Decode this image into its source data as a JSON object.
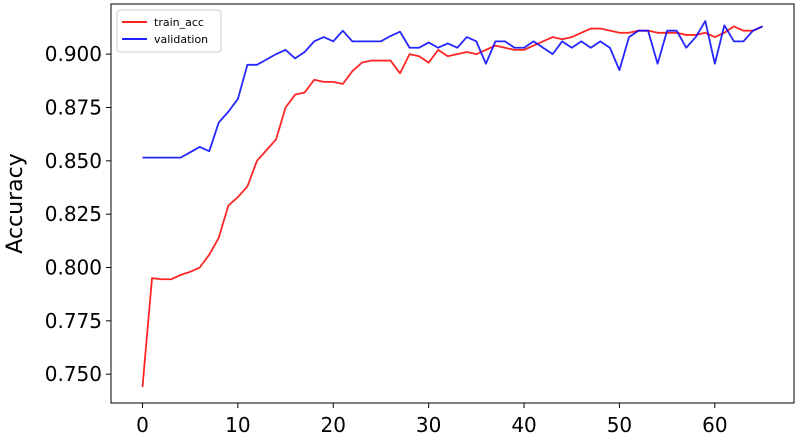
{
  "chart_data": {
    "type": "line",
    "title": "",
    "xlabel": "",
    "ylabel": "Accuracy",
    "xlim": [
      -3.3,
      68.3
    ],
    "ylim": [
      0.7365,
      0.9235
    ],
    "xticks": [
      0,
      10,
      20,
      30,
      40,
      50,
      60
    ],
    "yticks": [
      0.75,
      0.775,
      0.8,
      0.825,
      0.85,
      0.875,
      0.9
    ],
    "ytick_labels": [
      "0.750",
      "0.775",
      "0.800",
      "0.825",
      "0.850",
      "0.875",
      "0.900"
    ],
    "grid": false,
    "legend": "top-left",
    "series": [
      {
        "name": "train_acc",
        "color": "#ff0000",
        "values": [
          0.744,
          0.795,
          0.7945,
          0.7945,
          0.7965,
          0.798,
          0.8,
          0.806,
          0.814,
          0.829,
          0.833,
          0.838,
          0.85,
          0.855,
          0.86,
          0.875,
          0.881,
          0.882,
          0.888,
          0.887,
          0.887,
          0.886,
          0.892,
          0.896,
          0.897,
          0.897,
          0.897,
          0.891,
          0.9,
          0.899,
          0.896,
          0.902,
          0.899,
          0.9,
          0.901,
          0.9,
          0.902,
          0.904,
          0.903,
          0.902,
          0.902,
          0.904,
          0.906,
          0.908,
          0.907,
          0.908,
          0.91,
          0.912,
          0.912,
          0.911,
          0.91,
          0.91,
          0.911,
          0.911,
          0.91,
          0.91,
          0.91,
          0.909,
          0.909,
          0.91,
          0.908,
          0.91,
          0.913,
          0.911,
          0.911,
          0.913
        ]
      },
      {
        "name": "validation",
        "color": "#0000ff",
        "values": [
          0.8515,
          0.8515,
          0.8515,
          0.8515,
          0.8515,
          0.854,
          0.8565,
          0.8545,
          0.868,
          0.873,
          0.879,
          0.895,
          0.895,
          0.8975,
          0.9,
          0.902,
          0.898,
          0.901,
          0.906,
          0.908,
          0.906,
          0.911,
          0.906,
          0.906,
          0.906,
          0.906,
          0.9085,
          0.9105,
          0.903,
          0.903,
          0.9055,
          0.903,
          0.905,
          0.903,
          0.908,
          0.906,
          0.8955,
          0.906,
          0.906,
          0.903,
          0.903,
          0.906,
          0.903,
          0.9,
          0.906,
          0.903,
          0.906,
          0.903,
          0.906,
          0.903,
          0.8925,
          0.908,
          0.911,
          0.911,
          0.8955,
          0.911,
          0.911,
          0.903,
          0.908,
          0.9155,
          0.8955,
          0.9135,
          0.906,
          0.906,
          0.911,
          0.913
        ]
      }
    ]
  }
}
